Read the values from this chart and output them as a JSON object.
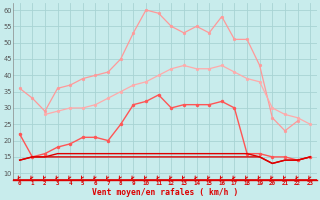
{
  "xlabel": "Vent moyen/en rafales ( km/h )",
  "background_color": "#c8ecec",
  "grid_color": "#a8d4d4",
  "x_ticks": [
    0,
    1,
    2,
    3,
    4,
    5,
    6,
    7,
    8,
    9,
    10,
    11,
    12,
    13,
    14,
    15,
    16,
    17,
    18,
    19,
    20,
    21,
    22,
    23
  ],
  "ylim": [
    8,
    62
  ],
  "yticks": [
    10,
    15,
    20,
    25,
    30,
    35,
    40,
    45,
    50,
    55,
    60
  ],
  "series": [
    {
      "name": "line1_lightest",
      "color": "#ff9999",
      "linewidth": 0.9,
      "marker": "o",
      "markersize": 2.0,
      "data": [
        36,
        33,
        29,
        36,
        37,
        39,
        40,
        41,
        45,
        53,
        60,
        59,
        55,
        53,
        55,
        53,
        58,
        51,
        51,
        43,
        27,
        23,
        26,
        null
      ]
    },
    {
      "name": "line2_light",
      "color": "#ffaaaa",
      "linewidth": 0.9,
      "marker": "o",
      "markersize": 2.0,
      "data": [
        null,
        null,
        28,
        29,
        30,
        30,
        31,
        33,
        35,
        37,
        38,
        40,
        42,
        43,
        42,
        42,
        43,
        41,
        39,
        38,
        30,
        28,
        27,
        25
      ]
    },
    {
      "name": "line3_medium",
      "color": "#ff5555",
      "linewidth": 1.0,
      "marker": "o",
      "markersize": 2.2,
      "data": [
        22,
        15,
        16,
        18,
        19,
        21,
        21,
        20,
        25,
        31,
        32,
        34,
        30,
        31,
        31,
        31,
        32,
        30,
        16,
        16,
        15,
        15,
        14,
        15
      ]
    },
    {
      "name": "line4_dark_flat",
      "color": "#dd0000",
      "linewidth": 1.0,
      "marker": null,
      "markersize": 0,
      "data": [
        14,
        15,
        15,
        15,
        15,
        15,
        15,
        15,
        15,
        15,
        15,
        15,
        15,
        15,
        15,
        15,
        15,
        15,
        15,
        15,
        13,
        14,
        14,
        15
      ]
    },
    {
      "name": "line5_dark_flat2",
      "color": "#dd0000",
      "linewidth": 1.0,
      "marker": null,
      "markersize": 0,
      "data": [
        14,
        15,
        15,
        16,
        16,
        16,
        16,
        16,
        16,
        16,
        16,
        16,
        16,
        16,
        16,
        16,
        16,
        16,
        16,
        15,
        13,
        14,
        14,
        15
      ]
    }
  ],
  "arrow_color": "#dd0000",
  "xlabel_color": "#dd0000",
  "tick_color": "#dd0000",
  "ytick_color": "#555555"
}
